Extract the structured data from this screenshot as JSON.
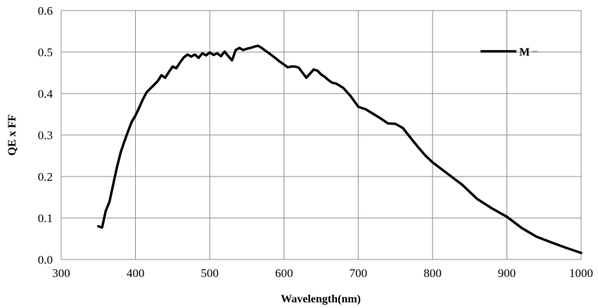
{
  "chart_data": {
    "type": "line",
    "title": "",
    "xlabel": "Wavelength(nm)",
    "ylabel": "QE x FF",
    "xlim": [
      300,
      1000
    ],
    "ylim": [
      0,
      0.6
    ],
    "x_ticks": [
      300,
      400,
      500,
      600,
      700,
      800,
      900,
      1000
    ],
    "x_tick_labels": [
      "300",
      "400",
      "500",
      "600",
      "700",
      "800",
      "900",
      "1000"
    ],
    "y_ticks": [
      0,
      0.1,
      0.2,
      0.3,
      0.4,
      0.5,
      0.6
    ],
    "y_tick_labels": [
      "0.0",
      "0.1",
      "0.2",
      "0.3",
      "0.4",
      "0.5",
      "0.6"
    ],
    "grid": true,
    "legend_position": "top-right",
    "series": [
      {
        "name": "M",
        "color": "#000000",
        "x": [
          350,
          355,
          360,
          365,
          370,
          375,
          380,
          385,
          390,
          395,
          400,
          405,
          410,
          415,
          420,
          425,
          430,
          435,
          440,
          445,
          450,
          455,
          460,
          465,
          470,
          475,
          480,
          485,
          490,
          495,
          500,
          505,
          510,
          515,
          520,
          525,
          530,
          535,
          540,
          545,
          550,
          555,
          560,
          565,
          570,
          575,
          580,
          585,
          590,
          595,
          600,
          605,
          610,
          615,
          620,
          625,
          630,
          635,
          640,
          645,
          650,
          655,
          660,
          665,
          670,
          675,
          680,
          690,
          700,
          710,
          720,
          730,
          740,
          750,
          760,
          770,
          780,
          790,
          800,
          820,
          840,
          860,
          880,
          900,
          920,
          940,
          960,
          980,
          1000
        ],
        "values": [
          0.08,
          0.077,
          0.117,
          0.139,
          0.181,
          0.222,
          0.258,
          0.284,
          0.309,
          0.332,
          0.347,
          0.366,
          0.386,
          0.403,
          0.412,
          0.421,
          0.43,
          0.444,
          0.438,
          0.452,
          0.465,
          0.461,
          0.475,
          0.487,
          0.494,
          0.489,
          0.494,
          0.486,
          0.497,
          0.492,
          0.499,
          0.493,
          0.497,
          0.49,
          0.501,
          0.49,
          0.48,
          0.505,
          0.51,
          0.505,
          0.508,
          0.51,
          0.513,
          0.515,
          0.51,
          0.503,
          0.497,
          0.49,
          0.483,
          0.476,
          0.47,
          0.463,
          0.465,
          0.465,
          0.462,
          0.45,
          0.438,
          0.448,
          0.458,
          0.455,
          0.446,
          0.44,
          0.432,
          0.426,
          0.424,
          0.419,
          0.413,
          0.393,
          0.368,
          0.362,
          0.351,
          0.34,
          0.328,
          0.327,
          0.317,
          0.294,
          0.272,
          0.251,
          0.234,
          0.207,
          0.18,
          0.146,
          0.123,
          0.103,
          0.076,
          0.055,
          0.041,
          0.028,
          0.016
        ]
      }
    ]
  }
}
